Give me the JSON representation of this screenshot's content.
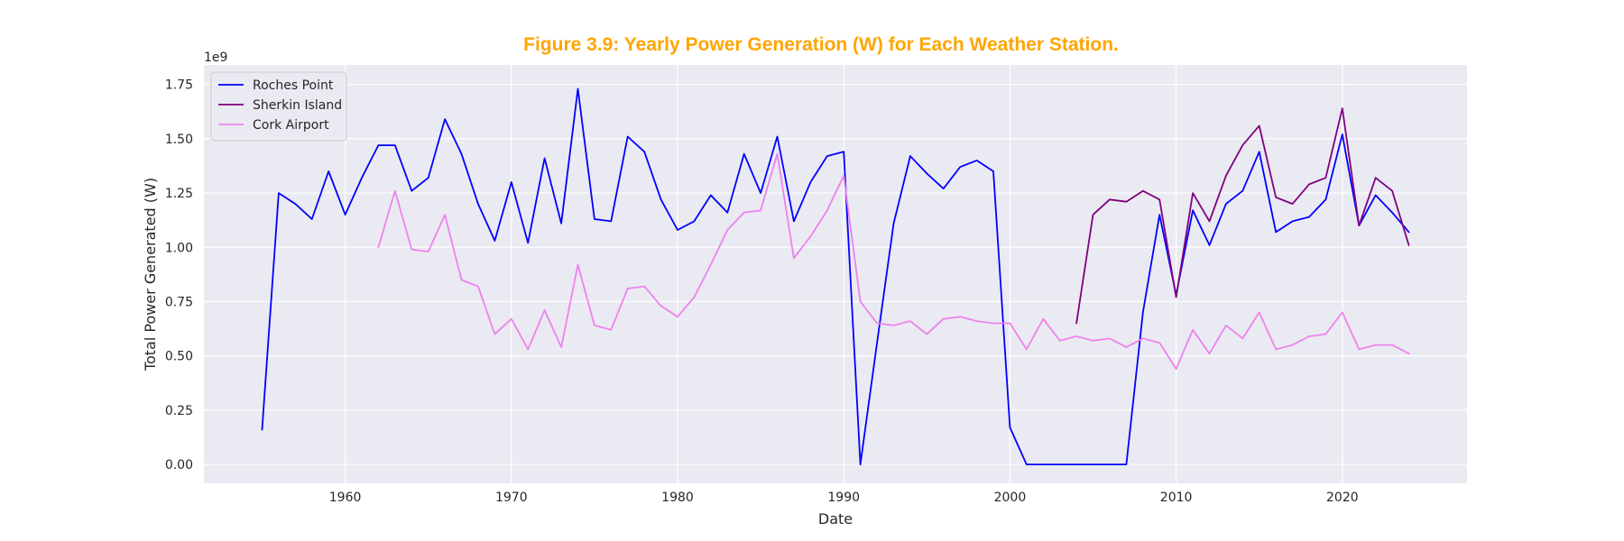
{
  "chart_data": {
    "type": "line",
    "title": "Figure 3.9: Yearly Power Generation (W) for Each Weather Station.",
    "title_color": "#FFA500",
    "xlabel": "Date",
    "ylabel": "Total Power Generated (W)",
    "y_scale_label": "1e9",
    "xlim": [
      1951.5,
      2027.5
    ],
    "ylim": [
      -0.087,
      1.84
    ],
    "x_ticks": [
      1960,
      1970,
      1980,
      1990,
      2000,
      2010,
      2020
    ],
    "x_tick_labels": [
      "1960",
      "1970",
      "1980",
      "1990",
      "2000",
      "2010",
      "2020"
    ],
    "y_ticks": [
      0,
      0.25,
      0.5,
      0.75,
      1.0,
      1.25,
      1.5,
      1.75
    ],
    "y_tick_labels": [
      "0.00",
      "0.25",
      "0.50",
      "0.75",
      "1.00",
      "1.25",
      "1.50",
      "1.75"
    ],
    "grid": true,
    "background": "#EAEAF2",
    "legend_position": "top-left",
    "series": [
      {
        "name": "Roches Point",
        "color": "#0000FF",
        "x": [
          1955,
          1956,
          1957,
          1958,
          1959,
          1960,
          1961,
          1962,
          1963,
          1964,
          1965,
          1966,
          1967,
          1968,
          1969,
          1970,
          1971,
          1972,
          1973,
          1974,
          1975,
          1976,
          1977,
          1978,
          1979,
          1980,
          1981,
          1982,
          1983,
          1984,
          1985,
          1986,
          1987,
          1988,
          1989,
          1990,
          1991,
          1992,
          1993,
          1994,
          1995,
          1996,
          1997,
          1998,
          1999,
          2000,
          2001,
          2002,
          2003,
          2004,
          2005,
          2006,
          2007,
          2008,
          2009,
          2010,
          2011,
          2012,
          2013,
          2014,
          2015,
          2016,
          2017,
          2018,
          2019,
          2020,
          2021,
          2022,
          2023,
          2024
        ],
        "y": [
          0.16,
          1.25,
          1.2,
          1.13,
          1.35,
          1.15,
          1.32,
          1.47,
          1.47,
          1.26,
          1.32,
          1.59,
          1.43,
          1.2,
          1.03,
          1.3,
          1.02,
          1.41,
          1.11,
          1.73,
          1.13,
          1.12,
          1.51,
          1.44,
          1.22,
          1.08,
          1.12,
          1.24,
          1.16,
          1.43,
          1.25,
          1.51,
          1.12,
          1.3,
          1.42,
          1.44,
          0.0,
          0.56,
          1.11,
          1.42,
          1.34,
          1.27,
          1.37,
          1.4,
          1.35,
          0.17,
          0.0,
          0.0,
          0.0,
          0.0,
          0.0,
          0.0,
          0.0,
          0.7,
          1.15,
          0.78,
          1.17,
          1.01,
          1.2,
          1.26,
          1.44,
          1.07,
          1.12,
          1.14,
          1.22,
          1.52,
          1.1,
          1.24,
          1.16,
          1.07
        ]
      },
      {
        "name": "Sherkin Island",
        "color": "#800080",
        "x": [
          2004,
          2005,
          2006,
          2007,
          2008,
          2009,
          2010,
          2011,
          2012,
          2013,
          2014,
          2015,
          2016,
          2017,
          2018,
          2019,
          2020,
          2021,
          2022,
          2023,
          2024
        ],
        "y": [
          0.65,
          1.15,
          1.22,
          1.21,
          1.26,
          1.22,
          0.77,
          1.25,
          1.12,
          1.33,
          1.47,
          1.56,
          1.23,
          1.2,
          1.29,
          1.32,
          1.64,
          1.1,
          1.32,
          1.26,
          1.01
        ]
      },
      {
        "name": "Cork Airport",
        "color": "#EE82EE",
        "x": [
          1962,
          1963,
          1964,
          1965,
          1966,
          1967,
          1968,
          1969,
          1970,
          1971,
          1972,
          1973,
          1974,
          1975,
          1976,
          1977,
          1978,
          1979,
          1980,
          1981,
          1982,
          1983,
          1984,
          1985,
          1986,
          1987,
          1988,
          1989,
          1990,
          1991,
          1992,
          1993,
          1994,
          1995,
          1996,
          1997,
          1998,
          1999,
          2000,
          2001,
          2002,
          2003,
          2004,
          2005,
          2006,
          2007,
          2008,
          2009,
          2010,
          2011,
          2012,
          2013,
          2014,
          2015,
          2016,
          2017,
          2018,
          2019,
          2020,
          2021,
          2022,
          2023,
          2024
        ],
        "y": [
          1.0,
          1.26,
          0.99,
          0.98,
          1.15,
          0.85,
          0.82,
          0.6,
          0.67,
          0.53,
          0.71,
          0.54,
          0.92,
          0.64,
          0.62,
          0.81,
          0.82,
          0.73,
          0.68,
          0.77,
          0.92,
          1.08,
          1.16,
          1.17,
          1.43,
          0.95,
          1.05,
          1.17,
          1.33,
          0.75,
          0.65,
          0.64,
          0.66,
          0.6,
          0.67,
          0.68,
          0.66,
          0.65,
          0.65,
          0.53,
          0.67,
          0.57,
          0.59,
          0.57,
          0.58,
          0.54,
          0.58,
          0.56,
          0.44,
          0.62,
          0.51,
          0.64,
          0.58,
          0.7,
          0.53,
          0.55,
          0.59,
          0.6,
          0.7,
          0.53,
          0.55,
          0.55,
          0.51
        ]
      }
    ]
  }
}
